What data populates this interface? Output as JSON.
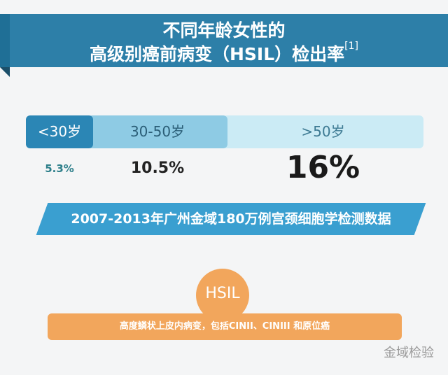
{
  "header": {
    "title_line1": "不同年龄女性的",
    "title_line2": "高级别癌前病变（HSIL）检出率",
    "citation": "[1]"
  },
  "age_groups": [
    {
      "label": "<30岁",
      "rate": "5.3%"
    },
    {
      "label": "30-50岁",
      "rate": "10.5%"
    },
    {
      "label": ">50岁",
      "rate": "16%"
    }
  ],
  "source": "2007-2013年广州金域180万例宫颈细胞学检测数据",
  "hsil": {
    "label": "HSIL",
    "definition": "高度鳞状上皮内病变，包括CINII、CINIII 和原位癌"
  },
  "watermark": "金域检验"
}
